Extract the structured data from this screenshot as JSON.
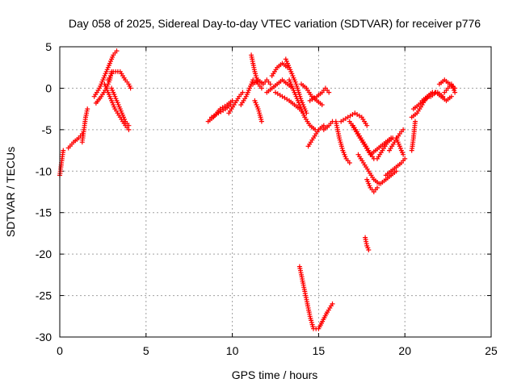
{
  "chart_data": {
    "type": "scatter",
    "title": "Day 058 of 2025, Sidereal Day-to-day VTEC variation (SDTVAR) for receiver p776",
    "xlabel": "GPS time / hours",
    "ylabel": "SDTVAR / TECUs",
    "xlim": [
      0,
      25
    ],
    "ylim": [
      -30,
      5
    ],
    "xticks": [
      0,
      5,
      10,
      15,
      20,
      25
    ],
    "yticks": [
      5,
      0,
      -5,
      -10,
      -15,
      -20,
      -25,
      -30
    ],
    "grid": true,
    "marker": "+",
    "color": "#ff0000",
    "series": [
      {
        "name": "p776",
        "segments": [
          {
            "x": [
              0.0,
              0.1,
              0.2
            ],
            "y": [
              -10.5,
              -9.0,
              -7.5
            ]
          },
          {
            "x": [
              0.5,
              0.8,
              1.1,
              1.3
            ],
            "y": [
              -7.2,
              -6.5,
              -6.0,
              -5.5
            ]
          },
          {
            "x": [
              1.3,
              1.4,
              1.5,
              1.6
            ],
            "y": [
              -6.5,
              -5.0,
              -3.5,
              -2.5
            ]
          },
          {
            "x": [
              2.0,
              2.3,
              2.6,
              2.9,
              3.1,
              3.3
            ],
            "y": [
              -1.0,
              0.0,
              1.5,
              3.0,
              4.0,
              4.5
            ]
          },
          {
            "x": [
              2.1,
              2.4,
              2.7,
              2.9,
              3.0
            ],
            "y": [
              -1.8,
              -1.0,
              0.0,
              1.0,
              2.0
            ]
          },
          {
            "x": [
              2.6,
              2.9,
              3.2,
              3.5,
              3.8,
              4.0
            ],
            "y": [
              0.5,
              -1.0,
              -2.5,
              -3.5,
              -4.5,
              -5.0
            ]
          },
          {
            "x": [
              2.8,
              3.1,
              3.5,
              3.8,
              4.0,
              4.1
            ],
            "y": [
              1.0,
              2.0,
              2.0,
              1.0,
              0.5,
              0.0
            ]
          },
          {
            "x": [
              3.0,
              3.3,
              3.6,
              3.8,
              4.0
            ],
            "y": [
              0.0,
              -1.5,
              -3.0,
              -4.0,
              -4.5
            ]
          },
          {
            "x": [
              8.6,
              8.9,
              9.3,
              9.7,
              10.0
            ],
            "y": [
              -4.0,
              -3.5,
              -2.5,
              -2.0,
              -1.5
            ]
          },
          {
            "x": [
              8.8,
              9.2,
              9.6,
              9.9
            ],
            "y": [
              -3.5,
              -3.0,
              -2.5,
              -2.0
            ]
          },
          {
            "x": [
              9.8,
              10.1,
              10.4,
              10.6
            ],
            "y": [
              -3.0,
              -2.0,
              -1.0,
              -0.5
            ]
          },
          {
            "x": [
              10.5,
              10.8,
              11.0,
              11.2
            ],
            "y": [
              -2.0,
              -1.0,
              0.0,
              1.0
            ]
          },
          {
            "x": [
              11.1,
              11.3,
              11.5,
              11.7
            ],
            "y": [
              4.0,
              2.0,
              0.5,
              0.0
            ]
          },
          {
            "x": [
              11.2,
              11.5,
              11.8,
              12.0,
              12.2
            ],
            "y": [
              0.5,
              1.0,
              0.5,
              1.0,
              0.5
            ]
          },
          {
            "x": [
              11.3,
              11.5,
              11.7
            ],
            "y": [
              -1.5,
              -2.5,
              -4.0
            ]
          },
          {
            "x": [
              12.0,
              12.3,
              12.6,
              12.9,
              13.2,
              13.5
            ],
            "y": [
              -0.5,
              0.0,
              0.5,
              1.0,
              0.5,
              0.0
            ]
          },
          {
            "x": [
              12.3,
              12.6,
              12.9,
              13.2
            ],
            "y": [
              1.5,
              2.5,
              3.0,
              2.5
            ]
          },
          {
            "x": [
              12.5,
              12.9,
              13.3,
              13.6,
              13.9,
              14.1
            ],
            "y": [
              -0.5,
              -1.0,
              -1.5,
              -2.0,
              -2.5,
              -3.0
            ]
          },
          {
            "x": [
              13.1,
              13.4,
              13.7,
              14.0,
              14.3
            ],
            "y": [
              3.5,
              2.0,
              0.5,
              -1.5,
              -3.0
            ]
          },
          {
            "x": [
              13.3,
              13.6,
              13.9,
              14.2,
              14.5,
              14.8
            ],
            "y": [
              1.0,
              -0.5,
              -2.0,
              -3.5,
              -4.5,
              -5.0
            ]
          },
          {
            "x": [
              14.0,
              14.3,
              14.6,
              14.9,
              15.2
            ],
            "y": [
              0.5,
              0.0,
              -1.0,
              -1.5,
              -2.0
            ]
          },
          {
            "x": [
              14.5,
              14.9,
              15.2,
              15.4,
              15.6
            ],
            "y": [
              -1.5,
              -1.0,
              -0.5,
              0.0,
              -0.5
            ]
          },
          {
            "x": [
              14.4,
              14.7,
              15.0,
              15.3
            ],
            "y": [
              -7.0,
              -6.0,
              -5.0,
              -4.5
            ]
          },
          {
            "x": [
              15.3,
              15.6,
              15.8
            ],
            "y": [
              -5.0,
              -4.5,
              -4.0
            ]
          },
          {
            "x": [
              13.9,
              14.1,
              14.3,
              14.5,
              14.7,
              15.0,
              15.5,
              15.8
            ],
            "y": [
              -21.5,
              -23.5,
              -25.5,
              -27.5,
              -29.0,
              -29.0,
              -27.0,
              -26.0
            ]
          },
          {
            "x": [
              16.0,
              16.2,
              16.4,
              16.6,
              16.8
            ],
            "y": [
              -4.0,
              -6.0,
              -7.5,
              -8.5,
              -9.0
            ]
          },
          {
            "x": [
              16.3,
              16.7,
              17.1,
              17.5,
              17.8
            ],
            "y": [
              -4.0,
              -3.5,
              -3.0,
              -3.5,
              -4.5
            ]
          },
          {
            "x": [
              16.8,
              17.1,
              17.4,
              17.7,
              18.0
            ],
            "y": [
              -4.0,
              -5.0,
              -6.0,
              -7.0,
              -8.0
            ]
          },
          {
            "x": [
              17.0,
              17.3,
              17.6,
              17.9,
              18.2
            ],
            "y": [
              -4.5,
              -5.5,
              -6.5,
              -7.5,
              -8.5
            ]
          },
          {
            "x": [
              17.3,
              17.6,
              17.9,
              18.2,
              18.5
            ],
            "y": [
              -8.0,
              -9.0,
              -10.0,
              -11.0,
              -11.5
            ]
          },
          {
            "x": [
              17.8,
              18.0,
              18.2,
              18.4
            ],
            "y": [
              -11.0,
              -12.0,
              -12.5,
              -12.0
            ]
          },
          {
            "x": [
              18.0,
              18.3,
              18.6,
              18.9,
              19.2
            ],
            "y": [
              -8.0,
              -7.5,
              -7.0,
              -6.5,
              -6.0
            ]
          },
          {
            "x": [
              18.4,
              18.7,
              19.0,
              19.3
            ],
            "y": [
              -8.5,
              -7.5,
              -6.5,
              -6.0
            ]
          },
          {
            "x": [
              18.6,
              18.9,
              19.2,
              19.5
            ],
            "y": [
              -11.5,
              -11.0,
              -10.5,
              -10.0
            ]
          },
          {
            "x": [
              18.9,
              19.2,
              19.5,
              19.8,
              20.0
            ],
            "y": [
              -10.5,
              -10.0,
              -9.5,
              -9.0,
              -8.5
            ]
          },
          {
            "x": [
              19.1,
              19.4,
              19.7,
              19.9
            ],
            "y": [
              -7.5,
              -6.5,
              -5.5,
              -5.0
            ]
          },
          {
            "x": [
              19.5,
              19.7,
              19.9
            ],
            "y": [
              -6.0,
              -7.0,
              -8.0
            ]
          },
          {
            "x": [
              17.7,
              17.8,
              17.9
            ],
            "y": [
              -18.0,
              -19.0,
              -19.5
            ]
          },
          {
            "x": [
              20.4,
              20.5,
              20.6
            ],
            "y": [
              -7.5,
              -6.0,
              -4.0
            ]
          },
          {
            "x": [
              20.4,
              20.7,
              21.0,
              21.3,
              21.6
            ],
            "y": [
              -3.5,
              -3.0,
              -2.0,
              -1.0,
              -0.5
            ]
          },
          {
            "x": [
              20.5,
              20.8,
              21.1,
              21.4
            ],
            "y": [
              -2.5,
              -2.0,
              -1.5,
              -1.0
            ]
          },
          {
            "x": [
              21.0,
              21.3,
              21.6,
              21.9,
              22.2
            ],
            "y": [
              -1.5,
              -1.0,
              -0.5,
              -0.5,
              -1.0
            ]
          },
          {
            "x": [
              21.5,
              21.8,
              22.1,
              22.4,
              22.7
            ],
            "y": [
              -1.0,
              -0.5,
              -1.0,
              -1.5,
              -1.0
            ]
          },
          {
            "x": [
              22.0,
              22.3,
              22.6,
              22.9
            ],
            "y": [
              0.5,
              1.0,
              0.5,
              0.0
            ]
          },
          {
            "x": [
              22.3,
              22.5,
              22.7,
              22.9
            ],
            "y": [
              -0.5,
              0.0,
              0.5,
              -0.5
            ]
          }
        ]
      }
    ]
  }
}
